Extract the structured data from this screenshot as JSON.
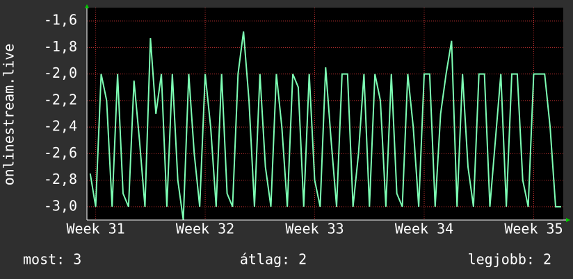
{
  "chart_data": {
    "type": "line",
    "ylabel": "onlinestream.live",
    "x": [
      30.95,
      31.0,
      31.05,
      31.1,
      31.15,
      31.2,
      31.25,
      31.3,
      31.35,
      31.4,
      31.45,
      31.5,
      31.55,
      31.6,
      31.65,
      31.7,
      31.75,
      31.8,
      31.85,
      31.9,
      31.95,
      32.0,
      32.05,
      32.1,
      32.15,
      32.2,
      32.25,
      32.3,
      32.35,
      32.4,
      32.45,
      32.5,
      32.55,
      32.6,
      32.65,
      32.7,
      32.75,
      32.8,
      32.85,
      32.9,
      32.95,
      33.0,
      33.05,
      33.1,
      33.15,
      33.2,
      33.25,
      33.3,
      33.35,
      33.4,
      33.45,
      33.5,
      33.55,
      33.6,
      33.65,
      33.7,
      33.75,
      33.8,
      33.85,
      33.9,
      33.95,
      34.0,
      34.05,
      34.1,
      34.15,
      34.2,
      34.25,
      34.3,
      34.35,
      34.4,
      34.45,
      34.5,
      34.55,
      34.6,
      34.65,
      34.7,
      34.75,
      34.8,
      34.85,
      34.9,
      34.95,
      35.0,
      35.05,
      35.1,
      35.15,
      35.2,
      35.25
    ],
    "series": [
      {
        "color": "#7dffb4",
        "values": [
          -2.75,
          -3.0,
          -2.0,
          -2.2,
          -3.0,
          -2.0,
          -2.9,
          -3.0,
          -2.05,
          -2.5,
          -3.0,
          -1.73,
          -2.3,
          -2.0,
          -3.0,
          -2.0,
          -2.8,
          -3.1,
          -2.0,
          -2.6,
          -3.0,
          -2.0,
          -2.4,
          -3.0,
          -2.0,
          -2.9,
          -3.0,
          -2.0,
          -1.68,
          -2.2,
          -3.0,
          -2.0,
          -2.7,
          -3.0,
          -2.0,
          -2.4,
          -3.0,
          -2.0,
          -2.1,
          -3.0,
          -2.0,
          -2.8,
          -3.0,
          -1.95,
          -2.5,
          -3.0,
          -2.0,
          -2.0,
          -3.0,
          -2.6,
          -2.0,
          -3.0,
          -2.0,
          -2.2,
          -3.0,
          -2.0,
          -2.9,
          -3.0,
          -2.0,
          -2.4,
          -3.0,
          -2.0,
          -2.0,
          -3.0,
          -2.3,
          -2.0,
          -1.75,
          -3.0,
          -2.0,
          -2.7,
          -3.0,
          -2.0,
          -2.0,
          -3.0,
          -2.5,
          -2.0,
          -3.0,
          -2.0,
          -2.0,
          -2.8,
          -3.0,
          -2.0,
          -2.0,
          -2.0,
          -2.4,
          -3.0,
          -3.0
        ]
      }
    ],
    "xlim": [
      30.92,
      35.27
    ],
    "xticks": [
      {
        "value": 31,
        "label": "Week 31"
      },
      {
        "value": 32,
        "label": "Week 32"
      },
      {
        "value": 33,
        "label": "Week 33"
      },
      {
        "value": 34,
        "label": "Week 34"
      },
      {
        "value": 35,
        "label": "Week 35"
      }
    ],
    "ylim": [
      -3.1,
      -1.5
    ],
    "yticks": [
      {
        "value": -1.6,
        "label": "-1,6"
      },
      {
        "value": -1.8,
        "label": "-1,8"
      },
      {
        "value": -2.0,
        "label": "-2,0"
      },
      {
        "value": -2.2,
        "label": "-2,2"
      },
      {
        "value": -2.4,
        "label": "-2,4"
      },
      {
        "value": -2.6,
        "label": "-2,6"
      },
      {
        "value": -2.8,
        "label": "-2,8"
      },
      {
        "value": -3.0,
        "label": "-3,0"
      }
    ],
    "grid": true,
    "footer": [
      "most: 3",
      "átlag: 2",
      "legjobb: 2"
    ]
  }
}
